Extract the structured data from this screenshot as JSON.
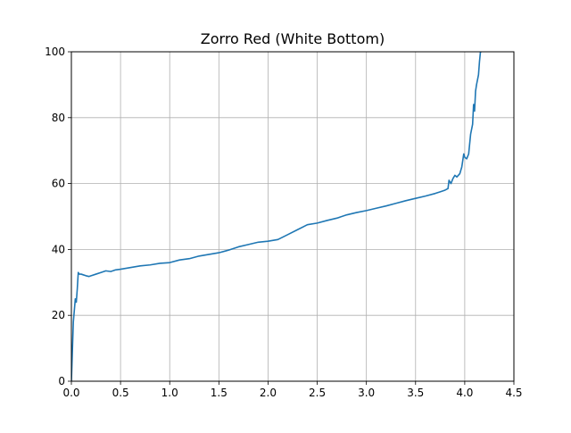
{
  "chart_data": {
    "type": "line",
    "title": "Zorro Red (White Bottom)",
    "xlabel": "",
    "ylabel": "",
    "xlim": [
      0.0,
      4.5
    ],
    "ylim": [
      0,
      100
    ],
    "grid": true,
    "x_ticks": [
      0.0,
      0.5,
      1.0,
      1.5,
      2.0,
      2.5,
      3.0,
      3.5,
      4.0,
      4.5
    ],
    "x_tick_labels": [
      "0.0",
      "0.5",
      "1.0",
      "1.5",
      "2.0",
      "2.5",
      "3.0",
      "3.5",
      "4.0",
      "4.5"
    ],
    "y_ticks": [
      0,
      20,
      40,
      60,
      80,
      100
    ],
    "y_tick_labels": [
      "0",
      "20",
      "40",
      "60",
      "80",
      "100"
    ],
    "series": [
      {
        "color": "#1f77b4",
        "x": [
          0.0,
          0.02,
          0.04,
          0.05,
          0.06,
          0.07,
          0.08,
          0.1,
          0.12,
          0.15,
          0.18,
          0.2,
          0.25,
          0.3,
          0.35,
          0.4,
          0.45,
          0.5,
          0.6,
          0.7,
          0.8,
          0.9,
          1.0,
          1.1,
          1.2,
          1.3,
          1.4,
          1.5,
          1.6,
          1.7,
          1.8,
          1.9,
          2.0,
          2.1,
          2.2,
          2.3,
          2.4,
          2.5,
          2.6,
          2.7,
          2.8,
          2.9,
          3.0,
          3.1,
          3.2,
          3.3,
          3.4,
          3.5,
          3.6,
          3.7,
          3.75,
          3.8,
          3.83,
          3.84,
          3.86,
          3.88,
          3.9,
          3.92,
          3.95,
          3.97,
          3.99,
          4.0,
          4.02,
          4.04,
          4.06,
          4.08,
          4.09,
          4.1,
          4.11,
          4.12,
          4.14,
          4.15,
          4.16,
          4.17
        ],
        "y": [
          0,
          18,
          25,
          24,
          28,
          33,
          32.5,
          32.5,
          32.3,
          32.0,
          31.8,
          32.0,
          32.5,
          33.0,
          33.5,
          33.3,
          33.8,
          34.0,
          34.5,
          35.0,
          35.3,
          35.8,
          36.0,
          36.8,
          37.2,
          38.0,
          38.5,
          39.0,
          39.8,
          40.8,
          41.5,
          42.2,
          42.5,
          43.0,
          44.5,
          46.0,
          47.5,
          48.0,
          48.8,
          49.5,
          50.5,
          51.2,
          51.8,
          52.5,
          53.2,
          54.0,
          54.8,
          55.5,
          56.2,
          57.0,
          57.5,
          58.0,
          58.5,
          61.0,
          60.0,
          61.5,
          62.5,
          62.0,
          63.0,
          65.0,
          69.0,
          68.0,
          67.5,
          69.0,
          75.0,
          78.0,
          84.0,
          82.0,
          88.0,
          90.0,
          93.0,
          97.0,
          100.0,
          100.0
        ]
      }
    ]
  }
}
